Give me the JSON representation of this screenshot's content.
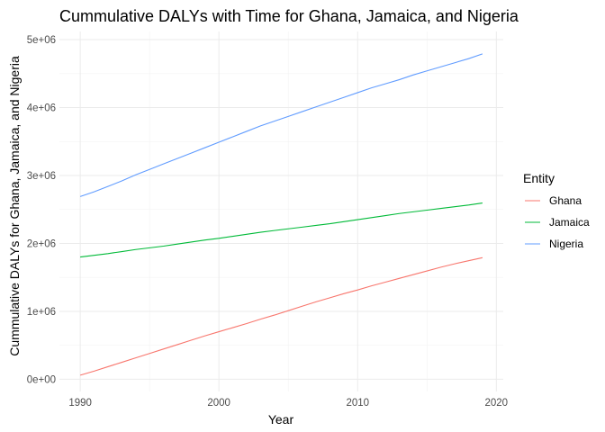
{
  "chart_data": {
    "type": "line",
    "title": "Cummulative DALYs with Time for Ghana, Jamaica, and Nigeria",
    "xlabel": "Year",
    "ylabel": "Cummulative DALYs for Ghana, Jamaica, and Nigeria",
    "xlim": [
      1990,
      2020
    ],
    "ylim": [
      0,
      5000000
    ],
    "x_ticks": [
      1990,
      2000,
      2010,
      2020
    ],
    "y_ticks": [
      0,
      1000000,
      2000000,
      3000000,
      4000000,
      5000000
    ],
    "y_tick_labels": [
      "0e+00",
      "1e+06",
      "2e+06",
      "3e+06",
      "4e+06",
      "5e+06"
    ],
    "x_tick_labels": [
      "1990",
      "2000",
      "2010",
      "2020"
    ],
    "grid": true,
    "legend": {
      "title": "Entity",
      "placement": "right"
    },
    "x": [
      1990,
      1991,
      1992,
      1993,
      1994,
      1995,
      1996,
      1997,
      1998,
      1999,
      2000,
      2001,
      2002,
      2003,
      2004,
      2005,
      2006,
      2007,
      2008,
      2009,
      2010,
      2011,
      2012,
      2013,
      2014,
      2015,
      2016,
      2017,
      2018,
      2019
    ],
    "series": [
      {
        "name": "Ghana",
        "color": "#F8766D",
        "values": [
          60000,
          120000,
          185000,
          250000,
          315000,
          380000,
          445000,
          510000,
          575000,
          640000,
          700000,
          760000,
          820000,
          885000,
          945000,
          1010000,
          1075000,
          1140000,
          1200000,
          1260000,
          1315000,
          1375000,
          1430000,
          1485000,
          1540000,
          1595000,
          1650000,
          1700000,
          1745000,
          1790000
        ]
      },
      {
        "name": "Jamaica",
        "color": "#00BA38",
        "values": [
          1800000,
          1825000,
          1850000,
          1880000,
          1910000,
          1935000,
          1960000,
          1990000,
          2020000,
          2050000,
          2075000,
          2105000,
          2135000,
          2165000,
          2190000,
          2215000,
          2240000,
          2265000,
          2290000,
          2320000,
          2350000,
          2380000,
          2410000,
          2440000,
          2465000,
          2490000,
          2515000,
          2540000,
          2565000,
          2595000
        ]
      },
      {
        "name": "Nigeria",
        "color": "#619CFF",
        "values": [
          2690000,
          2760000,
          2840000,
          2920000,
          3010000,
          3090000,
          3170000,
          3250000,
          3330000,
          3410000,
          3490000,
          3570000,
          3650000,
          3730000,
          3800000,
          3870000,
          3940000,
          4010000,
          4080000,
          4150000,
          4220000,
          4290000,
          4350000,
          4410000,
          4480000,
          4540000,
          4600000,
          4660000,
          4720000,
          4790000
        ]
      }
    ]
  }
}
